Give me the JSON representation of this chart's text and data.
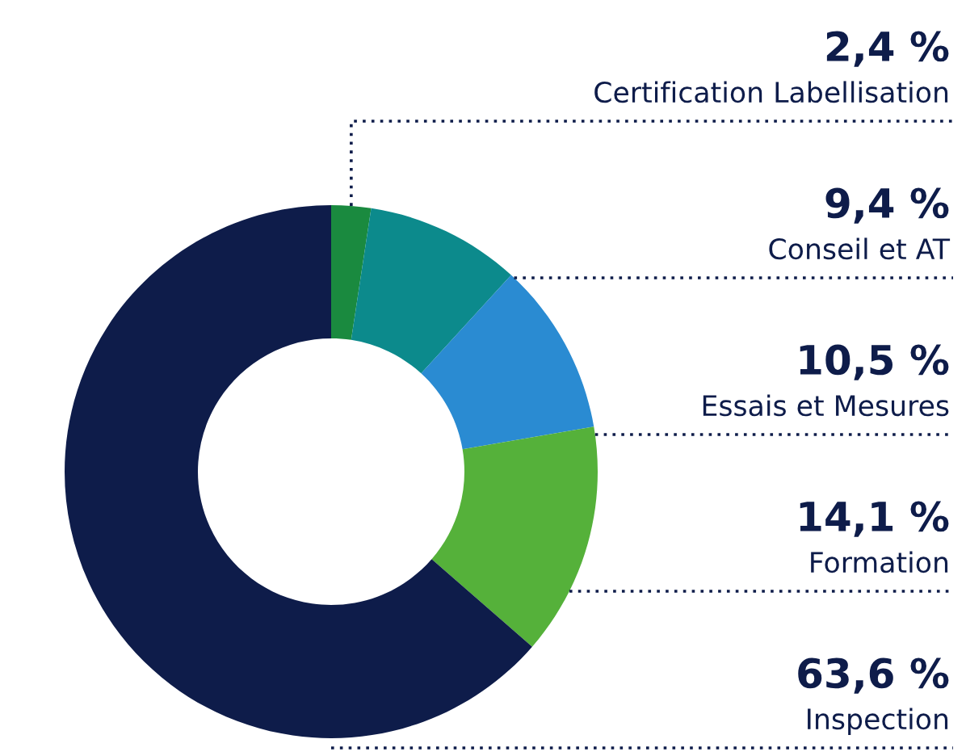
{
  "chart_data": {
    "type": "donut",
    "categories": [
      "Certification Labellisation",
      "Conseil et AT",
      "Essais et Mesures",
      "Formation",
      "Inspection"
    ],
    "values": [
      2.4,
      9.4,
      10.5,
      14.1,
      63.6
    ],
    "value_labels": [
      "2,4 %",
      "9,4 %",
      "10,5 %",
      "14,1 %",
      "63,6 %"
    ],
    "colors": [
      "#1a8a3f",
      "#0c8a8c",
      "#2a8bd2",
      "#55b13a",
      "#0e1c4a"
    ],
    "legend": false
  }
}
